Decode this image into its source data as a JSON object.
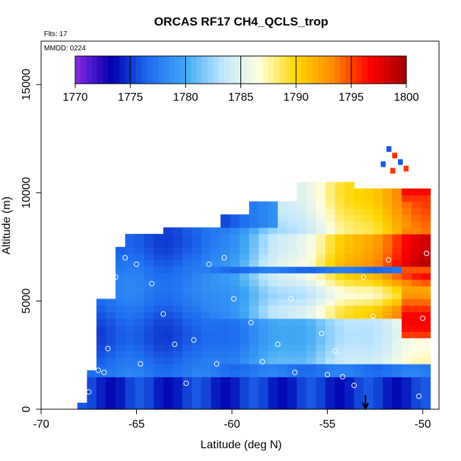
{
  "chart_data": {
    "type": "heatmap",
    "title": "ORCAS RF17 CH4_QCLS_trop",
    "annotations": {
      "flights": "Flts: 17",
      "date": "MMDD: 0224"
    },
    "xlabel": "Latitude (deg N)",
    "ylabel": "Altitude (m)",
    "xlim": [
      -70,
      -49.2
    ],
    "ylim": [
      0,
      16500
    ],
    "x_ticks": [
      -70,
      -65,
      -60,
      -55,
      -50
    ],
    "y_ticks": [
      0,
      5000,
      10000,
      15000
    ],
    "colorbar": {
      "ticks": [
        1770,
        1775,
        1780,
        1785,
        1790,
        1795,
        1800
      ],
      "range": [
        1770,
        1800
      ],
      "placement": "top"
    },
    "colors": [
      "#8a2be2",
      "#0000b0",
      "#1e6ef0",
      "#3fa9f5",
      "#bfe6ff",
      "#ffffe0",
      "#ffd700",
      "#ff8c00",
      "#ff0000",
      "#a00000"
    ],
    "marker": {
      "type": "down-arrow",
      "x": -53,
      "y": 0
    },
    "grid": false
  }
}
